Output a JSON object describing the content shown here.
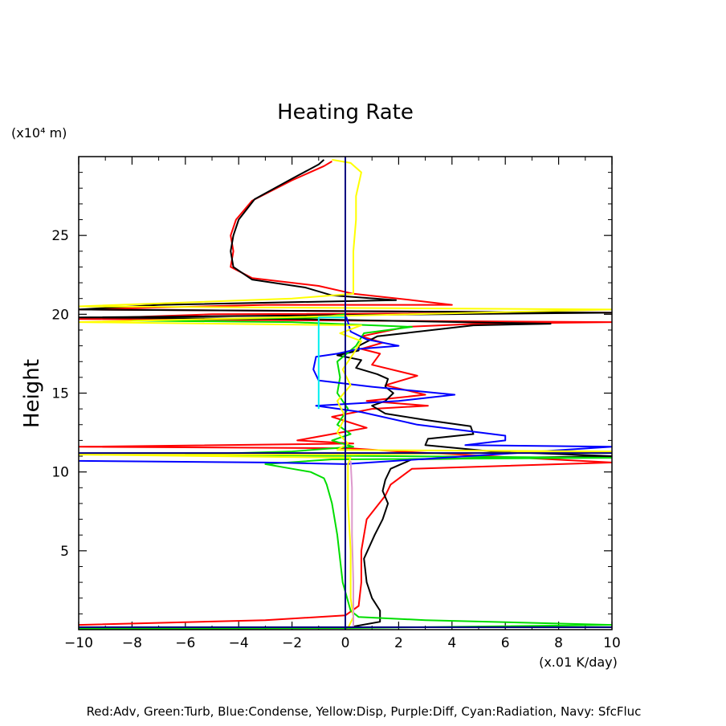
{
  "chart_data": {
    "type": "line",
    "title": "Heating Rate",
    "ylabel": "Height",
    "yunit": "(x10⁴ m)",
    "xunit": "(x.01 K/day)",
    "caption": "Red:Adv, Green:Turb, Blue:Condense, Yellow:Disp, Purple:Diff, Cyan:Radiation, Navy: SfcFluc",
    "xlim": [
      -10,
      10
    ],
    "ylim": [
      0,
      30
    ],
    "xticks": [
      -10,
      -8,
      -6,
      -4,
      -2,
      0,
      2,
      4,
      6,
      8,
      10
    ],
    "yticks": [
      5,
      10,
      15,
      20,
      25
    ],
    "grid": false,
    "series": [
      {
        "name": "Adv",
        "color": "#ff0000",
        "points": [
          [
            -10,
            0.3
          ],
          [
            -3,
            0.6
          ],
          [
            0,
            0.9
          ],
          [
            0.5,
            1.5
          ],
          [
            0.6,
            3
          ],
          [
            0.6,
            5
          ],
          [
            0.8,
            7
          ],
          [
            1.5,
            8.5
          ],
          [
            1.7,
            9.2
          ],
          [
            2.5,
            10.2
          ],
          [
            10,
            10.6
          ],
          [
            10,
            10.6
          ],
          [
            2,
            11.3
          ],
          [
            0.2,
            11.5
          ],
          [
            -10,
            11.6
          ],
          [
            0.3,
            11.8
          ],
          [
            -1.8,
            12
          ],
          [
            0.8,
            12.8
          ],
          [
            -0.5,
            13.5
          ],
          [
            1,
            14
          ],
          [
            3.1,
            14.2
          ],
          [
            0.8,
            14.5
          ],
          [
            3,
            14.9
          ],
          [
            1.5,
            15.5
          ],
          [
            2.7,
            16.1
          ],
          [
            1,
            16.8
          ],
          [
            1.3,
            17.5
          ],
          [
            0.6,
            17.8
          ],
          [
            1.4,
            18.2
          ],
          [
            0.6,
            18.6
          ],
          [
            2.3,
            19.2
          ],
          [
            5,
            19.4
          ],
          [
            10,
            19.5
          ],
          [
            -10,
            19.7
          ],
          [
            -5,
            20
          ],
          [
            10,
            20.1
          ],
          [
            -10,
            20.3
          ],
          [
            -3,
            20.6
          ],
          [
            4,
            20.6
          ],
          [
            2.5,
            20.9
          ],
          [
            0.3,
            21.3
          ],
          [
            -1,
            21.8
          ],
          [
            -3.5,
            22.3
          ],
          [
            -4.3,
            23
          ],
          [
            -4.2,
            24
          ],
          [
            -4.3,
            25
          ],
          [
            -4.1,
            26
          ],
          [
            -3.5,
            27.2
          ],
          [
            -2,
            28.5
          ],
          [
            -0.8,
            29.4
          ],
          [
            -0.5,
            29.7
          ]
        ]
      },
      {
        "name": "",
        "color": "#000000",
        "points": [
          [
            0.3,
            0.2
          ],
          [
            1.3,
            0.5
          ],
          [
            1.3,
            1.2
          ],
          [
            1,
            2
          ],
          [
            0.8,
            3
          ],
          [
            0.7,
            4.5
          ],
          [
            1.1,
            6
          ],
          [
            1.4,
            7
          ],
          [
            1.6,
            8
          ],
          [
            1.4,
            8.8
          ],
          [
            1.5,
            9.5
          ],
          [
            1.7,
            10.2
          ],
          [
            2.5,
            10.8
          ],
          [
            10,
            11
          ],
          [
            5.5,
            11.3
          ],
          [
            3,
            11.7
          ],
          [
            3.1,
            12.1
          ],
          [
            4.8,
            12.4
          ],
          [
            4.7,
            12.9
          ],
          [
            3,
            13.3
          ],
          [
            1.5,
            13.7
          ],
          [
            1,
            14.2
          ],
          [
            1.5,
            14.5
          ],
          [
            1.8,
            15
          ],
          [
            1.5,
            15.4
          ],
          [
            1.6,
            15.9
          ],
          [
            1.2,
            16.2
          ],
          [
            0.4,
            16.6
          ],
          [
            0.6,
            17.1
          ],
          [
            -0.3,
            17.4
          ],
          [
            0.5,
            17.7
          ],
          [
            0.5,
            18
          ],
          [
            1.2,
            18.6
          ],
          [
            4.8,
            19.3
          ],
          [
            7.7,
            19.4
          ],
          [
            -2,
            19.7
          ],
          [
            -10,
            19.8
          ],
          [
            10,
            20.1
          ],
          [
            -10,
            20.3
          ],
          [
            -7,
            20.6
          ],
          [
            1.9,
            20.9
          ],
          [
            -0.5,
            21.2
          ],
          [
            -1.5,
            21.7
          ],
          [
            -3.5,
            22.2
          ],
          [
            -4.2,
            23
          ],
          [
            -4.3,
            24
          ],
          [
            -4.2,
            25
          ],
          [
            -4,
            26
          ],
          [
            -3.4,
            27.3
          ],
          [
            -2,
            28.6
          ],
          [
            -1,
            29.5
          ],
          [
            -0.8,
            29.8
          ]
        ]
      },
      {
        "name": "Turb",
        "color": "#00dd00",
        "points": [
          [
            -10,
            0.05
          ],
          [
            0.1,
            0.1
          ],
          [
            10,
            0.3
          ],
          [
            10,
            0.3
          ],
          [
            3,
            0.6
          ],
          [
            0.5,
            0.8
          ],
          [
            0.2,
            1.2
          ],
          [
            -0.1,
            3
          ],
          [
            -0.3,
            6
          ],
          [
            -0.5,
            8
          ],
          [
            -0.7,
            9.2
          ],
          [
            -0.8,
            9.6
          ],
          [
            -1.3,
            10
          ],
          [
            -2,
            10.2
          ],
          [
            -3,
            10.5
          ],
          [
            -0.5,
            10.8
          ],
          [
            10,
            10.9
          ],
          [
            10,
            10.9
          ],
          [
            -6,
            11.1
          ],
          [
            -2,
            11.3
          ],
          [
            0.3,
            11.6
          ],
          [
            -0.5,
            12
          ],
          [
            0.2,
            12.4
          ],
          [
            -0.3,
            13
          ],
          [
            0.1,
            14
          ],
          [
            -0.3,
            15
          ],
          [
            -0.2,
            16
          ],
          [
            -0.3,
            17
          ],
          [
            0.4,
            18
          ],
          [
            0.7,
            18.8
          ],
          [
            2.5,
            19.2
          ],
          [
            -2,
            19.5
          ],
          [
            -8,
            19.6
          ],
          [
            -1,
            19.8
          ],
          [
            0,
            20
          ]
        ]
      },
      {
        "name": "Condense",
        "color": "#0000ff",
        "points": [
          [
            -10,
            10.7
          ],
          [
            -3,
            10.6
          ],
          [
            0,
            10.5
          ],
          [
            10,
            11.6
          ],
          [
            10,
            11.6
          ],
          [
            4.5,
            11.7
          ],
          [
            6,
            12
          ],
          [
            6,
            12.3
          ],
          [
            2.7,
            13
          ],
          [
            0.6,
            13.8
          ],
          [
            -1.1,
            14.2
          ],
          [
            2,
            14.5
          ],
          [
            4.1,
            14.9
          ],
          [
            1,
            15.4
          ],
          [
            -1,
            15.8
          ],
          [
            -1.2,
            16.5
          ],
          [
            -1.1,
            17.3
          ],
          [
            -0.3,
            17.5
          ],
          [
            0.5,
            17.8
          ],
          [
            2,
            18
          ],
          [
            0.8,
            18.4
          ],
          [
            0.2,
            18.9
          ],
          [
            0.1,
            19.5
          ],
          [
            0,
            20
          ]
        ]
      },
      {
        "name": "Disp",
        "color": "#ffff00",
        "points": [
          [
            0.1,
            0.1
          ],
          [
            0.3,
            0.8
          ],
          [
            0.2,
            2
          ],
          [
            0.2,
            5
          ],
          [
            0.1,
            8
          ],
          [
            0.1,
            10.5
          ],
          [
            0.2,
            10.9
          ],
          [
            -10,
            11.1
          ],
          [
            0.3,
            11.1
          ],
          [
            10,
            11.3
          ],
          [
            -0.3,
            11.4
          ],
          [
            0.1,
            11.8
          ],
          [
            -0.3,
            12.5
          ],
          [
            0,
            13.5
          ],
          [
            -0.3,
            14.5
          ],
          [
            0.2,
            15.5
          ],
          [
            -0.1,
            16.5
          ],
          [
            0.3,
            17.5
          ],
          [
            0.6,
            18.3
          ],
          [
            -0.2,
            18.8
          ],
          [
            0.6,
            19.3
          ],
          [
            -10,
            19.5
          ],
          [
            10,
            20.3
          ],
          [
            -10,
            20.5
          ],
          [
            -2,
            21
          ],
          [
            0.3,
            21.3
          ],
          [
            0.3,
            22
          ],
          [
            0.3,
            23
          ],
          [
            0.3,
            24
          ],
          [
            0.4,
            26
          ],
          [
            0.4,
            27.5
          ],
          [
            0.6,
            29
          ],
          [
            0.2,
            29.6
          ],
          [
            -0.5,
            29.8
          ]
        ]
      },
      {
        "name": "Diff",
        "color": "#dd99cc",
        "points": [
          [
            0.3,
            0.1
          ],
          [
            0.3,
            3
          ],
          [
            0.25,
            6
          ],
          [
            0.25,
            9
          ],
          [
            0.2,
            10.7
          ]
        ]
      },
      {
        "name": "Radiation",
        "color": "#00eeee",
        "points": [
          [
            -1,
            14
          ],
          [
            -1,
            17
          ],
          [
            -1,
            19.8
          ],
          [
            0,
            19.8
          ]
        ]
      },
      {
        "name": "SfcFluc",
        "color": "#000080",
        "points": [
          [
            0,
            0
          ],
          [
            0,
            30
          ],
          [
            -10,
            11.2
          ],
          [
            10,
            11.2
          ],
          [
            -10,
            0.15
          ],
          [
            10,
            0.15
          ]
        ]
      }
    ]
  }
}
